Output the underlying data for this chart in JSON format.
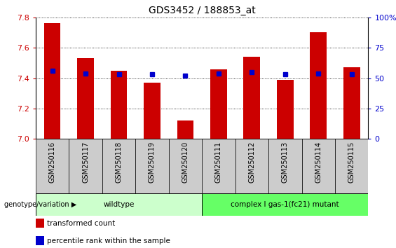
{
  "title": "GDS3452 / 188853_at",
  "samples": [
    "GSM250116",
    "GSM250117",
    "GSM250118",
    "GSM250119",
    "GSM250120",
    "GSM250111",
    "GSM250112",
    "GSM250113",
    "GSM250114",
    "GSM250115"
  ],
  "transformed_count": [
    7.76,
    7.53,
    7.45,
    7.37,
    7.12,
    7.46,
    7.54,
    7.39,
    7.7,
    7.47
  ],
  "percentile_rank": [
    56,
    54,
    53,
    53,
    52,
    54,
    55,
    53,
    54,
    53
  ],
  "y_min": 7.0,
  "y_max": 7.8,
  "y_ticks": [
    7.0,
    7.2,
    7.4,
    7.6,
    7.8
  ],
  "right_y_ticks": [
    0,
    25,
    50,
    75,
    100
  ],
  "right_y_labels": [
    "0",
    "25",
    "50",
    "75",
    "100%"
  ],
  "bar_color": "#cc0000",
  "percentile_color": "#0000cc",
  "bar_width": 0.5,
  "groups": [
    {
      "label": "wildtype",
      "start": 0,
      "end": 4,
      "color": "#ccffcc"
    },
    {
      "label": "complex I gas-1(fc21) mutant",
      "start": 5,
      "end": 9,
      "color": "#66ff66"
    }
  ],
  "legend_items": [
    {
      "label": "transformed count",
      "color": "#cc0000"
    },
    {
      "label": "percentile rank within the sample",
      "color": "#0000cc"
    }
  ],
  "tick_label_color": "#cc0000",
  "right_tick_color": "#0000cc",
  "title_fontsize": 10,
  "grid_linestyle": "dotted",
  "xlabel_bg_color": "#cccccc",
  "genotype_label": "genotype/variation"
}
